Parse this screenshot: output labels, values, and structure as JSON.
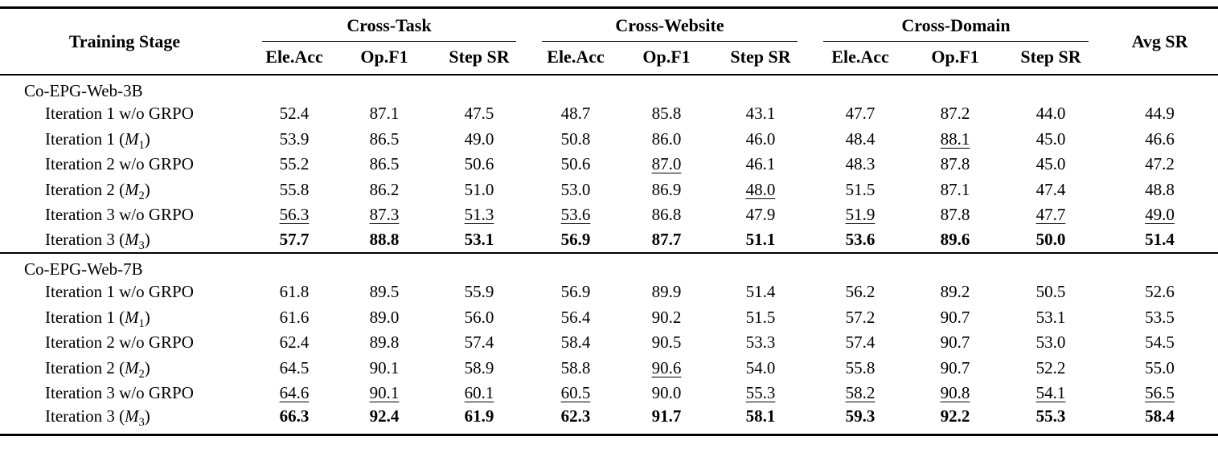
{
  "table": {
    "stage_header": "Training Stage",
    "avg_header": "Avg SR",
    "model_symbol": "M",
    "col_groups": [
      {
        "label": "Cross-Task"
      },
      {
        "label": "Cross-Website"
      },
      {
        "label": "Cross-Domain"
      }
    ],
    "sub_headers": [
      "Ele.Acc",
      "Op.F1",
      "Step SR"
    ],
    "style_legend": {
      "b": "best (bold)",
      "u": "second-best (underline)"
    },
    "groups": [
      {
        "name": "Co-EPG-Web-3B",
        "rows": [
          {
            "label": "Iteration 1 w/o GRPO",
            "cells": [
              [
                "52.4",
                ""
              ],
              [
                "87.1",
                ""
              ],
              [
                "47.5",
                ""
              ],
              [
                "48.7",
                ""
              ],
              [
                "85.8",
                ""
              ],
              [
                "43.1",
                ""
              ],
              [
                "47.7",
                ""
              ],
              [
                "87.2",
                ""
              ],
              [
                "44.0",
                ""
              ],
              [
                "44.9",
                ""
              ]
            ]
          },
          {
            "label": "Iteration 1",
            "msub": "1",
            "cells": [
              [
                "53.9",
                ""
              ],
              [
                "86.5",
                ""
              ],
              [
                "49.0",
                ""
              ],
              [
                "50.8",
                ""
              ],
              [
                "86.0",
                ""
              ],
              [
                "46.0",
                ""
              ],
              [
                "48.4",
                ""
              ],
              [
                "88.1",
                "u"
              ],
              [
                "45.0",
                ""
              ],
              [
                "46.6",
                ""
              ]
            ]
          },
          {
            "label": "Iteration 2 w/o GRPO",
            "cells": [
              [
                "55.2",
                ""
              ],
              [
                "86.5",
                ""
              ],
              [
                "50.6",
                ""
              ],
              [
                "50.6",
                ""
              ],
              [
                "87.0",
                "u"
              ],
              [
                "46.1",
                ""
              ],
              [
                "48.3",
                ""
              ],
              [
                "87.8",
                ""
              ],
              [
                "45.0",
                ""
              ],
              [
                "47.2",
                ""
              ]
            ]
          },
          {
            "label": "Iteration 2",
            "msub": "2",
            "cells": [
              [
                "55.8",
                ""
              ],
              [
                "86.2",
                ""
              ],
              [
                "51.0",
                ""
              ],
              [
                "53.0",
                ""
              ],
              [
                "86.9",
                ""
              ],
              [
                "48.0",
                "u"
              ],
              [
                "51.5",
                ""
              ],
              [
                "87.1",
                ""
              ],
              [
                "47.4",
                ""
              ],
              [
                "48.8",
                ""
              ]
            ]
          },
          {
            "label": "Iteration 3 w/o GRPO",
            "cells": [
              [
                "56.3",
                "u"
              ],
              [
                "87.3",
                "u"
              ],
              [
                "51.3",
                "u"
              ],
              [
                "53.6",
                "u"
              ],
              [
                "86.8",
                ""
              ],
              [
                "47.9",
                ""
              ],
              [
                "51.9",
                "u"
              ],
              [
                "87.8",
                ""
              ],
              [
                "47.7",
                "u"
              ],
              [
                "49.0",
                "u"
              ]
            ]
          },
          {
            "label": "Iteration 3",
            "msub": "3",
            "cells": [
              [
                "57.7",
                "b"
              ],
              [
                "88.8",
                "b"
              ],
              [
                "53.1",
                "b"
              ],
              [
                "56.9",
                "b"
              ],
              [
                "87.7",
                "b"
              ],
              [
                "51.1",
                "b"
              ],
              [
                "53.6",
                "b"
              ],
              [
                "89.6",
                "b"
              ],
              [
                "50.0",
                "b"
              ],
              [
                "51.4",
                "b"
              ]
            ]
          }
        ]
      },
      {
        "name": "Co-EPG-Web-7B",
        "rows": [
          {
            "label": "Iteration 1 w/o GRPO",
            "cells": [
              [
                "61.8",
                ""
              ],
              [
                "89.5",
                ""
              ],
              [
                "55.9",
                ""
              ],
              [
                "56.9",
                ""
              ],
              [
                "89.9",
                ""
              ],
              [
                "51.4",
                ""
              ],
              [
                "56.2",
                ""
              ],
              [
                "89.2",
                ""
              ],
              [
                "50.5",
                ""
              ],
              [
                "52.6",
                ""
              ]
            ]
          },
          {
            "label": "Iteration 1",
            "msub": "1",
            "cells": [
              [
                "61.6",
                ""
              ],
              [
                "89.0",
                ""
              ],
              [
                "56.0",
                ""
              ],
              [
                "56.4",
                ""
              ],
              [
                "90.2",
                ""
              ],
              [
                "51.5",
                ""
              ],
              [
                "57.2",
                ""
              ],
              [
                "90.7",
                ""
              ],
              [
                "53.1",
                ""
              ],
              [
                "53.5",
                ""
              ]
            ]
          },
          {
            "label": "Iteration 2 w/o GRPO",
            "cells": [
              [
                "62.4",
                ""
              ],
              [
                "89.8",
                ""
              ],
              [
                "57.4",
                ""
              ],
              [
                "58.4",
                ""
              ],
              [
                "90.5",
                ""
              ],
              [
                "53.3",
                ""
              ],
              [
                "57.4",
                ""
              ],
              [
                "90.7",
                ""
              ],
              [
                "53.0",
                ""
              ],
              [
                "54.5",
                ""
              ]
            ]
          },
          {
            "label": "Iteration 2",
            "msub": "2",
            "cells": [
              [
                "64.5",
                ""
              ],
              [
                "90.1",
                ""
              ],
              [
                "58.9",
                ""
              ],
              [
                "58.8",
                ""
              ],
              [
                "90.6",
                "u"
              ],
              [
                "54.0",
                ""
              ],
              [
                "55.8",
                ""
              ],
              [
                "90.7",
                ""
              ],
              [
                "52.2",
                ""
              ],
              [
                "55.0",
                ""
              ]
            ]
          },
          {
            "label": "Iteration 3 w/o GRPO",
            "cells": [
              [
                "64.6",
                "u"
              ],
              [
                "90.1",
                "u"
              ],
              [
                "60.1",
                "u"
              ],
              [
                "60.5",
                "u"
              ],
              [
                "90.0",
                ""
              ],
              [
                "55.3",
                "u"
              ],
              [
                "58.2",
                "u"
              ],
              [
                "90.8",
                "u"
              ],
              [
                "54.1",
                "u"
              ],
              [
                "56.5",
                "u"
              ]
            ]
          },
          {
            "label": "Iteration 3",
            "msub": "3",
            "cells": [
              [
                "66.3",
                "b"
              ],
              [
                "92.4",
                "b"
              ],
              [
                "61.9",
                "b"
              ],
              [
                "62.3",
                "b"
              ],
              [
                "91.7",
                "b"
              ],
              [
                "58.1",
                "b"
              ],
              [
                "59.3",
                "b"
              ],
              [
                "92.2",
                "b"
              ],
              [
                "55.3",
                "b"
              ],
              [
                "58.4",
                "b"
              ]
            ]
          }
        ]
      }
    ]
  }
}
